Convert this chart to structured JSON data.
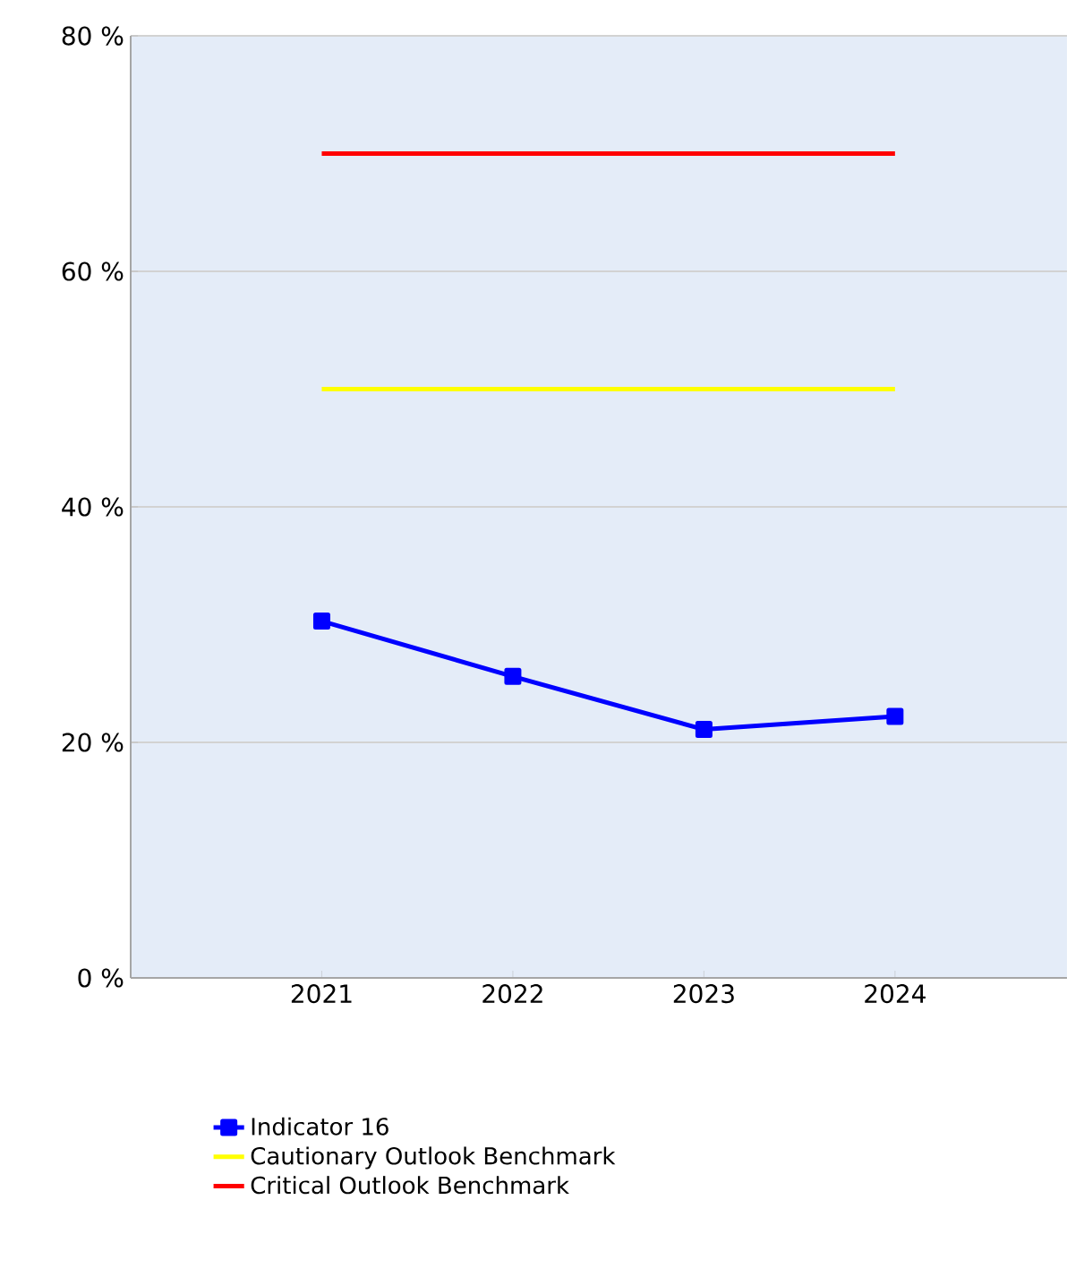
{
  "chart_data": {
    "type": "line",
    "categories": [
      "2021",
      "2022",
      "2023",
      "2024"
    ],
    "series": [
      {
        "name": "Indicator 16",
        "color": "#0000ff",
        "values": [
          30.3,
          25.6,
          21.1,
          22.2
        ],
        "marker": "square"
      },
      {
        "name": "Cautionary Outlook Benchmark",
        "color": "#ffff00",
        "values": [
          50,
          50,
          50,
          50
        ],
        "marker": "none"
      },
      {
        "name": "Critical Outlook Benchmark",
        "color": "#ff0000",
        "values": [
          70,
          70,
          70,
          70
        ],
        "marker": "none"
      }
    ],
    "ylim": [
      0,
      80
    ],
    "yticks": [
      {
        "value": 0,
        "label": "0 %"
      },
      {
        "value": 20,
        "label": "20 %"
      },
      {
        "value": 40,
        "label": "40 %"
      },
      {
        "value": 60,
        "label": "60 %"
      },
      {
        "value": 80,
        "label": "80 %"
      }
    ],
    "grid": "y",
    "legend": "bottom",
    "line_style": "solid"
  }
}
